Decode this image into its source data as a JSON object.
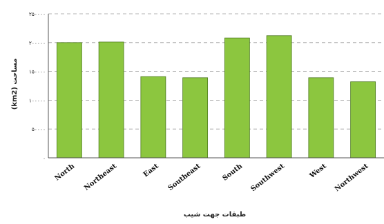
{
  "chart_data": {
    "type": "bar",
    "categories": [
      "North",
      "Northeast",
      "East",
      "Southeast",
      "South",
      "Southwest",
      "West",
      "Northwest"
    ],
    "values": [
      200000,
      201000,
      141000,
      139000,
      208000,
      212000,
      139000,
      132000
    ],
    "xlabel": "طبقات جهت شیب",
    "ylabel": "مساحت (km2)",
    "ylim": [
      0,
      250000
    ],
    "yticks": [
      0,
      50000,
      100000,
      150000,
      200000,
      250000
    ],
    "ytick_labels": [
      "۰",
      "۵۰۰۰۰",
      "۱۰۰۰۰۰",
      "۱۵۰۰۰۰",
      "۲۰۰۰۰۰",
      "۲۵۰۰۰۰"
    ],
    "grid": true,
    "legend": "none",
    "colors": {
      "bar_fill": "#8cc63f",
      "bar_stroke": "#4d7a1e",
      "grid": "#9a9a9a"
    }
  }
}
